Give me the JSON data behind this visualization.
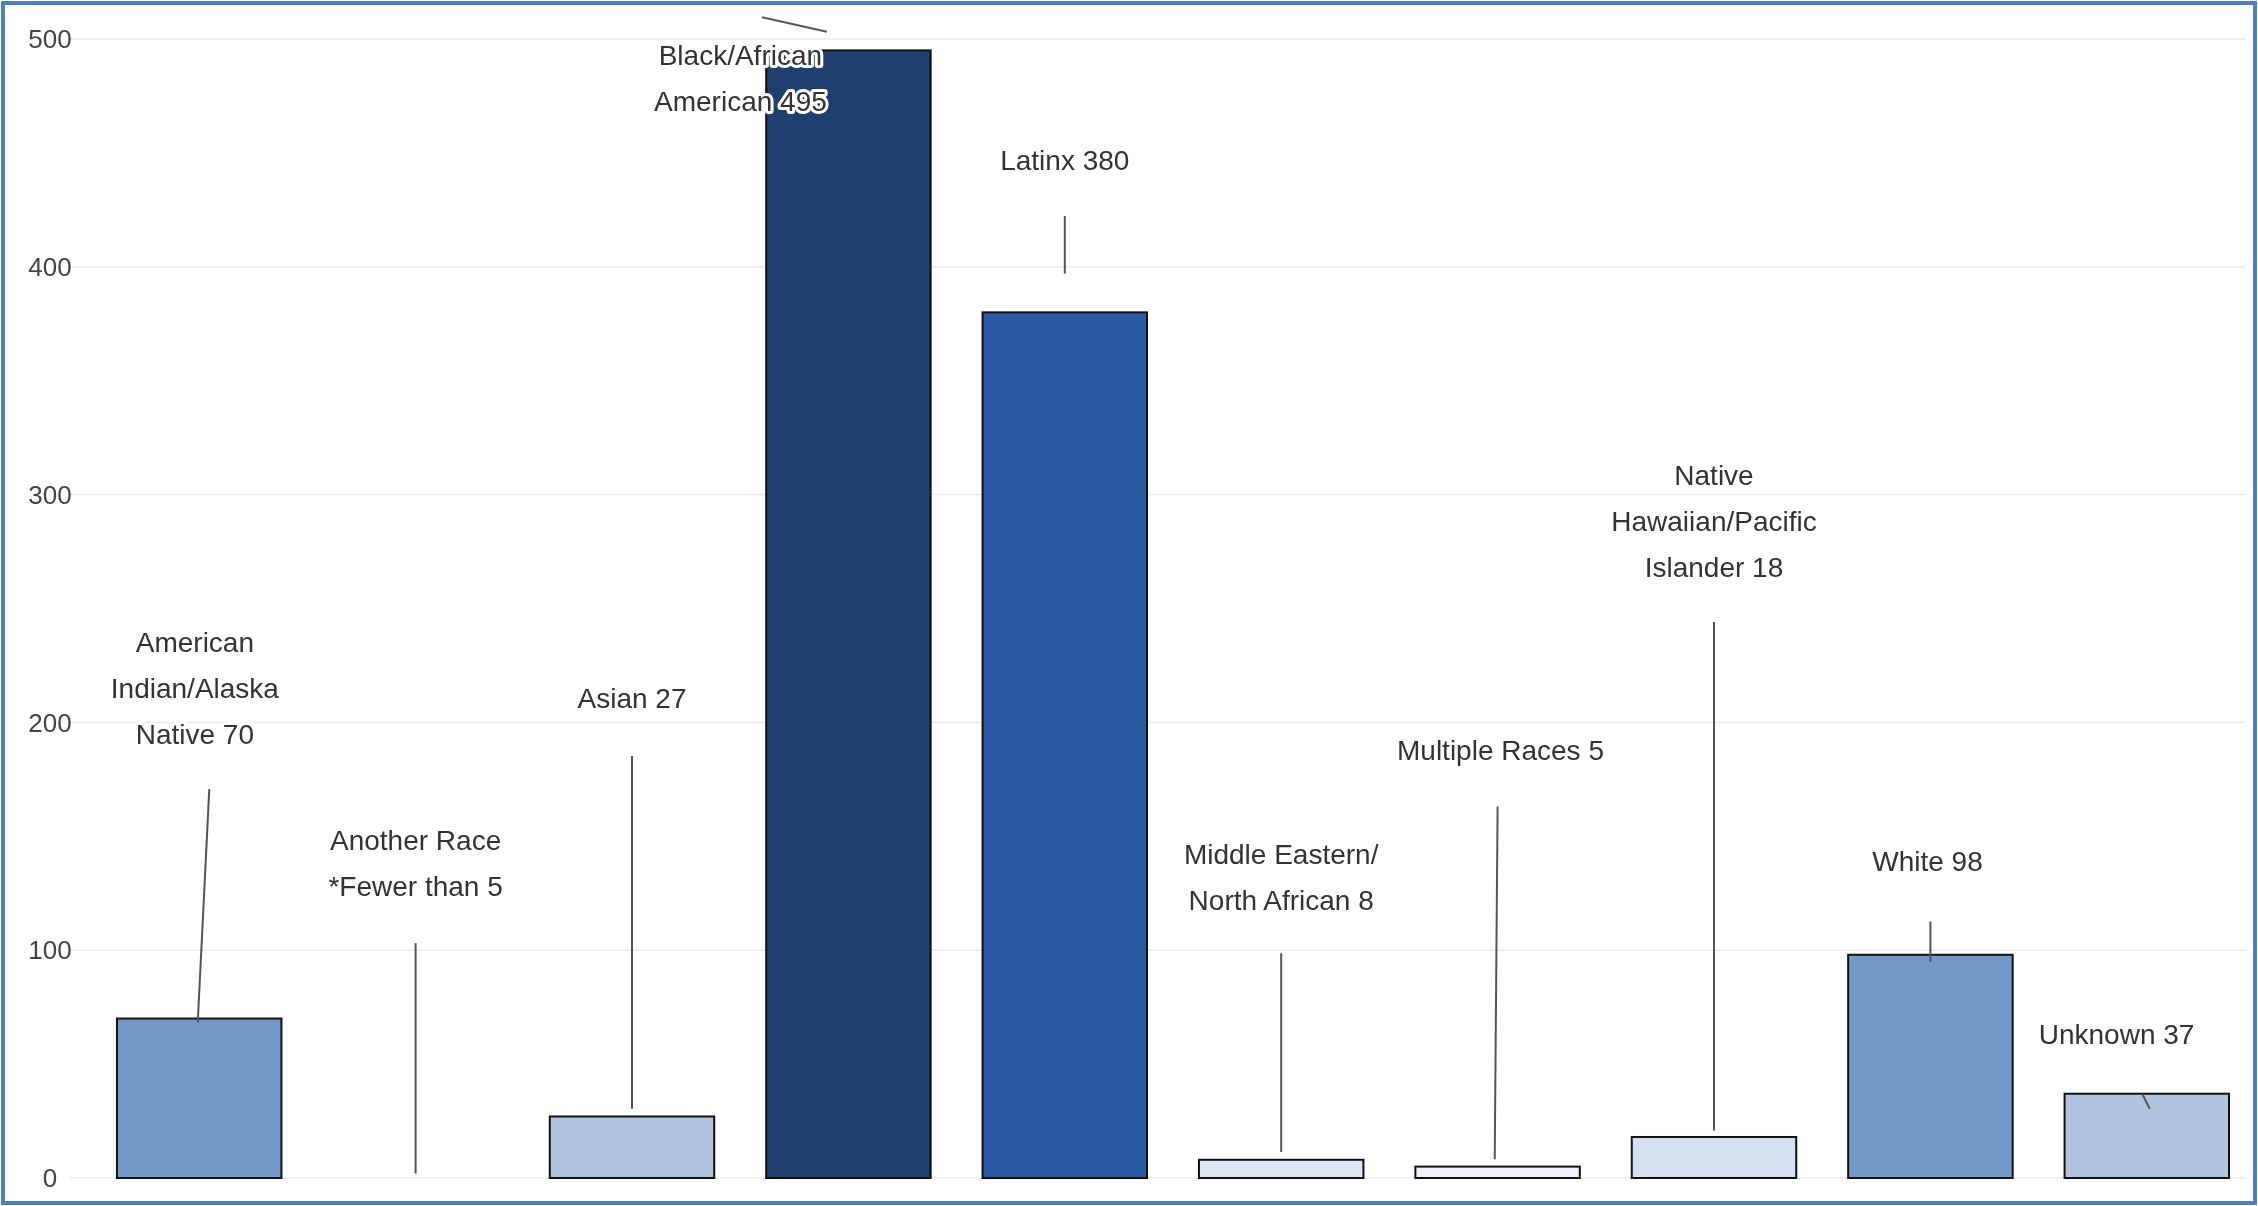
{
  "chart_data": {
    "type": "bar",
    "categories": [
      "American Indian/Alaska Native",
      "Another Race",
      "Asian",
      "Black/African American",
      "Latinx",
      "Middle Eastern/ North African",
      "Multiple Races",
      "Native Hawaiian/Pacific Islander",
      "White",
      "Unknown"
    ],
    "values": [
      70,
      null,
      27,
      495,
      380,
      8,
      5,
      18,
      98,
      37
    ],
    "colors": [
      "#7399cb",
      null,
      "#b0c4e0",
      "#1f3f6e",
      "#2a5aa3",
      "#dde6f2",
      "#eef2f8",
      "#d4dff0",
      "#7399cb",
      "#b0c4e0"
    ],
    "value_labels": [
      "70",
      "*Fewer than 5",
      "27",
      "495",
      "380",
      "8",
      "5",
      "18",
      "98",
      "37"
    ],
    "ylim": [
      0,
      500
    ],
    "yticks": [
      0,
      100,
      200,
      300,
      400,
      500
    ],
    "grid": "y",
    "tick_labels": "y"
  }
}
